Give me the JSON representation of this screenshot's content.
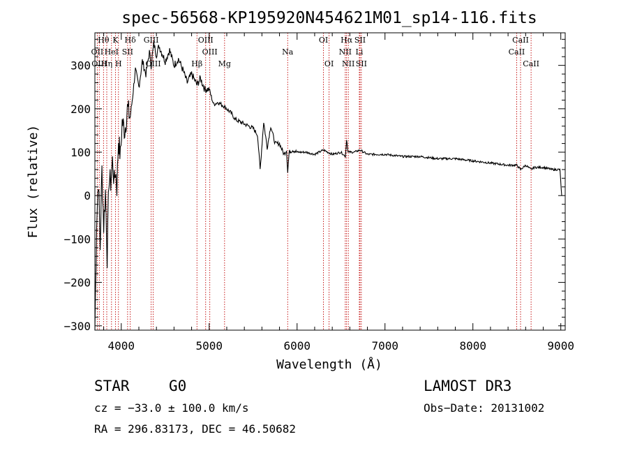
{
  "chart_data": {
    "type": "line",
    "title": "spec-56568-KP195920N454621M01_sp14-116.fits",
    "xlabel": "Wavelength (Å)",
    "ylabel": "Flux (relative)",
    "xlim": [
      3700,
      9050
    ],
    "ylim": [
      -310,
      375
    ],
    "x_ticks": [
      4000,
      5000,
      6000,
      7000,
      8000,
      9000
    ],
    "x_tick_labels": [
      "4000",
      "5000",
      "6000",
      "7000",
      "8000",
      "9000"
    ],
    "y_ticks": [
      -300,
      -200,
      -100,
      0,
      100,
      200,
      300
    ],
    "y_tick_labels": [
      "−300",
      "−200",
      "−100",
      "0",
      "100",
      "200",
      "300"
    ],
    "spectral_lines": [
      {
        "label": "Hθ",
        "wavelength": 3798,
        "row": 0
      },
      {
        "label": "K",
        "wavelength": 3934,
        "row": 0
      },
      {
        "label": "Hδ",
        "wavelength": 4102,
        "row": 0
      },
      {
        "label": "GIII",
        "wavelength": 4340,
        "row": 0
      },
      {
        "label": "OIII",
        "wavelength": 4960,
        "row": 0
      },
      {
        "label": "OI",
        "wavelength": 6300,
        "row": 0
      },
      {
        "label": "Hα",
        "wavelength": 6563,
        "row": 0
      },
      {
        "label": "SII",
        "wavelength": 6716,
        "row": 0
      },
      {
        "label": "CaII",
        "wavelength": 8542,
        "row": 0
      },
      {
        "label": "OII",
        "wavelength": 3727,
        "row": 1
      },
      {
        "label": "HeI",
        "wavelength": 3889,
        "row": 1
      },
      {
        "label": "SII",
        "wavelength": 4072,
        "row": 1
      },
      {
        "label": "OIII",
        "wavelength": 5007,
        "row": 1
      },
      {
        "label": "Na",
        "wavelength": 5893,
        "row": 1
      },
      {
        "label": "NII",
        "wavelength": 6548,
        "row": 1
      },
      {
        "label": "Li",
        "wavelength": 6708,
        "row": 1
      },
      {
        "label": "CaII",
        "wavelength": 8498,
        "row": 1
      },
      {
        "label": "OIII",
        "wavelength": 3750,
        "row": 2
      },
      {
        "label": "Hη",
        "wavelength": 3835,
        "row": 2
      },
      {
        "label": "H",
        "wavelength": 3968,
        "row": 2
      },
      {
        "label": "OIII",
        "wavelength": 4363,
        "row": 2
      },
      {
        "label": "Hβ",
        "wavelength": 4861,
        "row": 2
      },
      {
        "label": "Mg",
        "wavelength": 5175,
        "row": 2
      },
      {
        "label": "OI",
        "wavelength": 6364,
        "row": 2
      },
      {
        "label": "NII",
        "wavelength": 6583,
        "row": 2
      },
      {
        "label": "SII",
        "wavelength": 6731,
        "row": 2
      },
      {
        "label": "CaII",
        "wavelength": 8662,
        "row": 2
      }
    ],
    "spectrum": {
      "x": [
        3700,
        3720,
        3740,
        3760,
        3780,
        3800,
        3820,
        3840,
        3860,
        3880,
        3900,
        3920,
        3934,
        3950,
        3968,
        3990,
        4010,
        4040,
        4070,
        4102,
        4130,
        4160,
        4200,
        4240,
        4280,
        4320,
        4340,
        4370,
        4400,
        4430,
        4460,
        4500,
        4550,
        4600,
        4650,
        4700,
        4750,
        4800,
        4861,
        4900,
        4950,
        5000,
        5050,
        5100,
        5175,
        5250,
        5300,
        5400,
        5500,
        5550,
        5580,
        5620,
        5660,
        5700,
        5750,
        5800,
        5850,
        5880,
        5893,
        5910,
        5950,
        6000,
        6100,
        6200,
        6300,
        6400,
        6500,
        6550,
        6563,
        6580,
        6650,
        6716,
        6800,
        7000,
        7200,
        7400,
        7600,
        7800,
        8000,
        8200,
        8400,
        8500,
        8542,
        8600,
        8662,
        8700,
        8800,
        8900,
        8990,
        9010
      ],
      "flux": [
        -310,
        -60,
        40,
        -120,
        60,
        -70,
        10,
        -140,
        40,
        30,
        80,
        30,
        60,
        20,
        130,
        90,
        170,
        150,
        200,
        180,
        230,
        290,
        250,
        310,
        280,
        330,
        300,
        350,
        325,
        345,
        330,
        310,
        335,
        300,
        315,
        290,
        260,
        280,
        255,
        270,
        245,
        245,
        210,
        215,
        205,
        190,
        175,
        165,
        155,
        140,
        60,
        170,
        110,
        160,
        120,
        120,
        95,
        105,
        55,
        100,
        105,
        100,
        100,
        95,
        105,
        95,
        100,
        90,
        130,
        100,
        100,
        105,
        95,
        95,
        90,
        90,
        85,
        85,
        80,
        75,
        70,
        70,
        60,
        70,
        60,
        65,
        65,
        60,
        60,
        0
      ]
    }
  },
  "footer": {
    "object_class": "STAR",
    "subclass": "G0",
    "survey": "LAMOST DR3",
    "cz_text": "cz = −33.0 ± 100.0 km/s",
    "obs_date_text": "Obs−Date: 20131002",
    "coords_text": "RA = 296.83173, DEC =  46.50682"
  },
  "colors": {
    "spectrum": "#000000",
    "line_markers": "#c00000",
    "axes": "#000000"
  }
}
